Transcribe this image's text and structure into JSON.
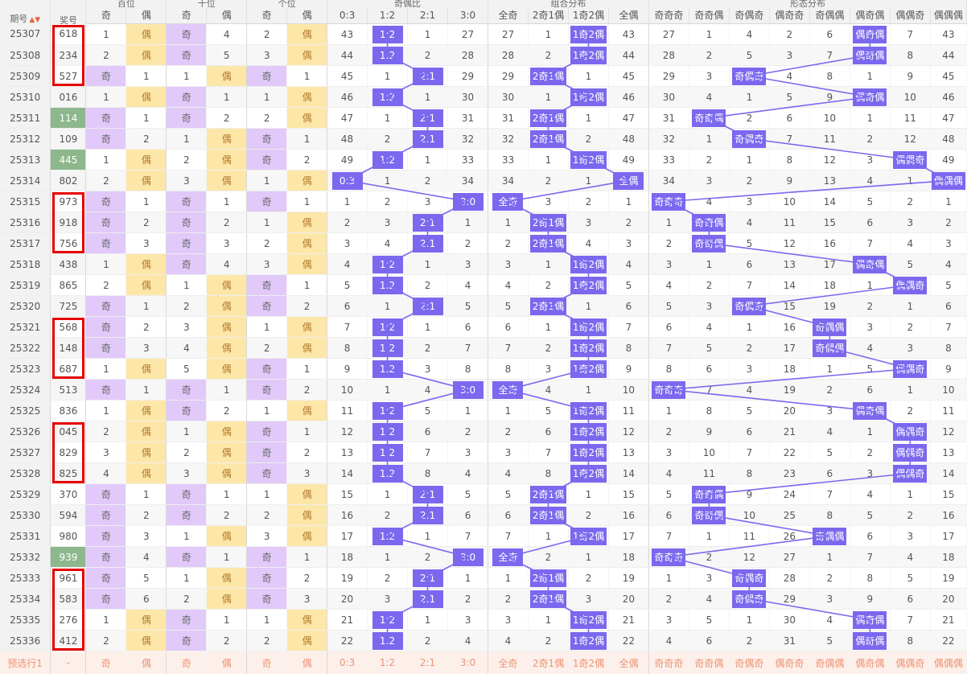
{
  "headers": {
    "issue": "期号",
    "sort_icon": "▲▼",
    "prize": "奖号",
    "groups": [
      "百位",
      "十位",
      "个位",
      "奇偶比",
      "组合分布",
      "形态分布"
    ],
    "digit_sub": [
      "奇",
      "偶"
    ],
    "ratio_sub": [
      "0:3",
      "1:2",
      "2:1",
      "3:0"
    ],
    "combo_sub": [
      "全奇",
      "2奇1偶",
      "1奇2偶",
      "全偶"
    ],
    "shape_sub": [
      "奇奇奇",
      "奇奇偶",
      "奇偶奇",
      "偶奇奇",
      "奇偶偶",
      "偶奇偶",
      "偶偶奇",
      "偶偶偶"
    ]
  },
  "rows": [
    {
      "issue": "25307",
      "prize": "618",
      "cells": [
        "1",
        "偶",
        "奇",
        "4",
        "2",
        "偶",
        "43",
        "1:2",
        "1",
        "27",
        "27",
        "1",
        "1奇2偶",
        "43",
        "27",
        "1",
        "4",
        "2",
        "6",
        "偶奇偶",
        "7",
        "43"
      ]
    },
    {
      "issue": "25308",
      "prize": "234",
      "cells": [
        "2",
        "偶",
        "奇",
        "5",
        "3",
        "偶",
        "44",
        "1:2",
        "2",
        "28",
        "28",
        "2",
        "1奇2偶",
        "44",
        "28",
        "2",
        "5",
        "3",
        "7",
        "偶奇偶",
        "8",
        "44"
      ]
    },
    {
      "issue": "25309",
      "prize": "527",
      "cells": [
        "奇",
        "1",
        "1",
        "偶",
        "奇",
        "1",
        "45",
        "1",
        "2:1",
        "29",
        "29",
        "2奇1偶",
        "1",
        "45",
        "29",
        "3",
        "奇偶奇",
        "4",
        "8",
        "1",
        "9",
        "45"
      ]
    },
    {
      "issue": "25310",
      "prize": "016",
      "cells": [
        "1",
        "偶",
        "奇",
        "1",
        "1",
        "偶",
        "46",
        "1:2",
        "1",
        "30",
        "30",
        "1",
        "1奇2偶",
        "46",
        "30",
        "4",
        "1",
        "5",
        "9",
        "偶奇偶",
        "10",
        "46"
      ]
    },
    {
      "issue": "25311",
      "prize": "114",
      "cells": [
        "奇",
        "1",
        "奇",
        "2",
        "2",
        "偶",
        "47",
        "1",
        "2:1",
        "31",
        "31",
        "2奇1偶",
        "1",
        "47",
        "31",
        "奇奇偶",
        "2",
        "6",
        "10",
        "1",
        "11",
        "47"
      ]
    },
    {
      "issue": "25312",
      "prize": "109",
      "cells": [
        "奇",
        "2",
        "1",
        "偶",
        "奇",
        "1",
        "48",
        "2",
        "2:1",
        "32",
        "32",
        "2奇1偶",
        "2",
        "48",
        "32",
        "1",
        "奇偶奇",
        "7",
        "11",
        "2",
        "12",
        "48"
      ]
    },
    {
      "issue": "25313",
      "prize": "445",
      "cells": [
        "1",
        "偶",
        "2",
        "偶",
        "奇",
        "2",
        "49",
        "1:2",
        "1",
        "33",
        "33",
        "1",
        "1奇2偶",
        "49",
        "33",
        "2",
        "1",
        "8",
        "12",
        "3",
        "偶偶奇",
        "49"
      ]
    },
    {
      "issue": "25314",
      "prize": "802",
      "cells": [
        "2",
        "偶",
        "3",
        "偶",
        "1",
        "偶",
        "0:3",
        "1",
        "2",
        "34",
        "34",
        "2",
        "1",
        "全偶",
        "34",
        "3",
        "2",
        "9",
        "13",
        "4",
        "1",
        "偶偶偶"
      ]
    },
    {
      "issue": "25315",
      "prize": "973",
      "cells": [
        "奇",
        "1",
        "奇",
        "1",
        "奇",
        "1",
        "1",
        "2",
        "3",
        "3:0",
        "全奇",
        "3",
        "2",
        "1",
        "奇奇奇",
        "4",
        "3",
        "10",
        "14",
        "5",
        "2",
        "1"
      ]
    },
    {
      "issue": "25316",
      "prize": "918",
      "cells": [
        "奇",
        "2",
        "奇",
        "2",
        "1",
        "偶",
        "2",
        "3",
        "2:1",
        "1",
        "1",
        "2奇1偶",
        "3",
        "2",
        "1",
        "奇奇偶",
        "4",
        "11",
        "15",
        "6",
        "3",
        "2"
      ]
    },
    {
      "issue": "25317",
      "prize": "756",
      "cells": [
        "奇",
        "3",
        "奇",
        "3",
        "2",
        "偶",
        "3",
        "4",
        "2:1",
        "2",
        "2",
        "2奇1偶",
        "4",
        "3",
        "2",
        "奇奇偶",
        "5",
        "12",
        "16",
        "7",
        "4",
        "3"
      ]
    },
    {
      "issue": "25318",
      "prize": "438",
      "cells": [
        "1",
        "偶",
        "奇",
        "4",
        "3",
        "偶",
        "4",
        "1:2",
        "1",
        "3",
        "3",
        "1",
        "1奇2偶",
        "4",
        "3",
        "1",
        "6",
        "13",
        "17",
        "偶奇偶",
        "5",
        "4"
      ]
    },
    {
      "issue": "25319",
      "prize": "865",
      "cells": [
        "2",
        "偶",
        "1",
        "偶",
        "奇",
        "1",
        "5",
        "1:2",
        "2",
        "4",
        "4",
        "2",
        "1奇2偶",
        "5",
        "4",
        "2",
        "7",
        "14",
        "18",
        "1",
        "偶偶奇",
        "5"
      ]
    },
    {
      "issue": "25320",
      "prize": "725",
      "cells": [
        "奇",
        "1",
        "2",
        "偶",
        "奇",
        "2",
        "6",
        "1",
        "2:1",
        "5",
        "5",
        "2奇1偶",
        "1",
        "6",
        "5",
        "3",
        "奇偶奇",
        "15",
        "19",
        "2",
        "1",
        "6"
      ]
    },
    {
      "issue": "25321",
      "prize": "568",
      "cells": [
        "奇",
        "2",
        "3",
        "偶",
        "1",
        "偶",
        "7",
        "1:2",
        "1",
        "6",
        "6",
        "1",
        "1奇2偶",
        "7",
        "6",
        "4",
        "1",
        "16",
        "奇偶偶",
        "3",
        "2",
        "7"
      ]
    },
    {
      "issue": "25322",
      "prize": "148",
      "cells": [
        "奇",
        "3",
        "4",
        "偶",
        "2",
        "偶",
        "8",
        "1:2",
        "2",
        "7",
        "7",
        "2",
        "1奇2偶",
        "8",
        "7",
        "5",
        "2",
        "17",
        "奇偶偶",
        "4",
        "3",
        "8"
      ]
    },
    {
      "issue": "25323",
      "prize": "687",
      "cells": [
        "1",
        "偶",
        "5",
        "偶",
        "奇",
        "1",
        "9",
        "1:2",
        "3",
        "8",
        "8",
        "3",
        "1奇2偶",
        "9",
        "8",
        "6",
        "3",
        "18",
        "1",
        "5",
        "偶偶奇",
        "9"
      ]
    },
    {
      "issue": "25324",
      "prize": "513",
      "cells": [
        "奇",
        "1",
        "奇",
        "1",
        "奇",
        "2",
        "10",
        "1",
        "4",
        "3:0",
        "全奇",
        "4",
        "1",
        "10",
        "奇奇奇",
        "7",
        "4",
        "19",
        "2",
        "6",
        "1",
        "10"
      ]
    },
    {
      "issue": "25325",
      "prize": "836",
      "cells": [
        "1",
        "偶",
        "奇",
        "2",
        "1",
        "偶",
        "11",
        "1:2",
        "5",
        "1",
        "1",
        "5",
        "1奇2偶",
        "11",
        "1",
        "8",
        "5",
        "20",
        "3",
        "偶奇偶",
        "2",
        "11"
      ]
    },
    {
      "issue": "25326",
      "prize": "045",
      "cells": [
        "2",
        "偶",
        "1",
        "偶",
        "奇",
        "1",
        "12",
        "1:2",
        "6",
        "2",
        "2",
        "6",
        "1奇2偶",
        "12",
        "2",
        "9",
        "6",
        "21",
        "4",
        "1",
        "偶偶奇",
        "12"
      ]
    },
    {
      "issue": "25327",
      "prize": "829",
      "cells": [
        "3",
        "偶",
        "2",
        "偶",
        "奇",
        "2",
        "13",
        "1:2",
        "7",
        "3",
        "3",
        "7",
        "1奇2偶",
        "13",
        "3",
        "10",
        "7",
        "22",
        "5",
        "2",
        "偶偶奇",
        "13"
      ]
    },
    {
      "issue": "25328",
      "prize": "825",
      "cells": [
        "4",
        "偶",
        "3",
        "偶",
        "奇",
        "3",
        "14",
        "1:2",
        "8",
        "4",
        "4",
        "8",
        "1奇2偶",
        "14",
        "4",
        "11",
        "8",
        "23",
        "6",
        "3",
        "偶偶奇",
        "14"
      ]
    },
    {
      "issue": "25329",
      "prize": "370",
      "cells": [
        "奇",
        "1",
        "奇",
        "1",
        "1",
        "偶",
        "15",
        "1",
        "2:1",
        "5",
        "5",
        "2奇1偶",
        "1",
        "15",
        "5",
        "奇奇偶",
        "9",
        "24",
        "7",
        "4",
        "1",
        "15"
      ]
    },
    {
      "issue": "25330",
      "prize": "594",
      "cells": [
        "奇",
        "2",
        "奇",
        "2",
        "2",
        "偶",
        "16",
        "2",
        "2:1",
        "6",
        "6",
        "2奇1偶",
        "2",
        "16",
        "6",
        "奇奇偶",
        "10",
        "25",
        "8",
        "5",
        "2",
        "16"
      ]
    },
    {
      "issue": "25331",
      "prize": "980",
      "cells": [
        "奇",
        "3",
        "1",
        "偶",
        "3",
        "偶",
        "17",
        "1:2",
        "1",
        "7",
        "7",
        "1",
        "1奇2偶",
        "17",
        "7",
        "1",
        "11",
        "26",
        "奇偶偶",
        "6",
        "3",
        "17"
      ]
    },
    {
      "issue": "25332",
      "prize": "939",
      "cells": [
        "奇",
        "4",
        "奇",
        "1",
        "奇",
        "1",
        "18",
        "1",
        "2",
        "3:0",
        "全奇",
        "2",
        "1",
        "18",
        "奇奇奇",
        "2",
        "12",
        "27",
        "1",
        "7",
        "4",
        "18"
      ]
    },
    {
      "issue": "25333",
      "prize": "961",
      "cells": [
        "奇",
        "5",
        "1",
        "偶",
        "奇",
        "2",
        "19",
        "2",
        "2:1",
        "1",
        "1",
        "2奇1偶",
        "2",
        "19",
        "1",
        "3",
        "奇偶奇",
        "28",
        "2",
        "8",
        "5",
        "19"
      ]
    },
    {
      "issue": "25334",
      "prize": "583",
      "cells": [
        "奇",
        "6",
        "2",
        "偶",
        "奇",
        "3",
        "20",
        "3",
        "2:1",
        "2",
        "2",
        "2奇1偶",
        "3",
        "20",
        "2",
        "4",
        "奇偶奇",
        "29",
        "3",
        "9",
        "6",
        "20"
      ]
    },
    {
      "issue": "25335",
      "prize": "276",
      "cells": [
        "1",
        "偶",
        "奇",
        "1",
        "1",
        "偶",
        "21",
        "1:2",
        "1",
        "3",
        "3",
        "1",
        "1奇2偶",
        "21",
        "3",
        "5",
        "1",
        "30",
        "4",
        "偶奇偶",
        "7",
        "21"
      ]
    },
    {
      "issue": "25336",
      "prize": "412",
      "cells": [
        "2",
        "偶",
        "奇",
        "2",
        "2",
        "偶",
        "22",
        "1:2",
        "2",
        "4",
        "4",
        "2",
        "1奇2偶",
        "22",
        "4",
        "6",
        "2",
        "31",
        "5",
        "偶奇偶",
        "8",
        "22"
      ]
    }
  ],
  "prediction": {
    "label": "预选行1",
    "prize": "-",
    "cells": [
      "奇",
      "偶",
      "奇",
      "偶",
      "奇",
      "偶",
      "0:3",
      "1:2",
      "2:1",
      "3:0",
      "全奇",
      "2奇1偶",
      "1奇2偶",
      "全偶",
      "奇奇奇",
      "奇奇偶",
      "奇偶奇",
      "偶奇奇",
      "奇偶偶",
      "偶奇偶",
      "偶偶奇",
      "偶偶偶"
    ]
  },
  "colors": {
    "odd_bg": "#e1c9f9",
    "even_bg": "#fde7a8",
    "even_text": "#b27a2c",
    "hit_pill": "#7b68ee",
    "green_highlight": "#8db78d",
    "red_box": "#e60000",
    "prediction_bg": "#fdf0ea",
    "prediction_text": "#ec9375"
  }
}
